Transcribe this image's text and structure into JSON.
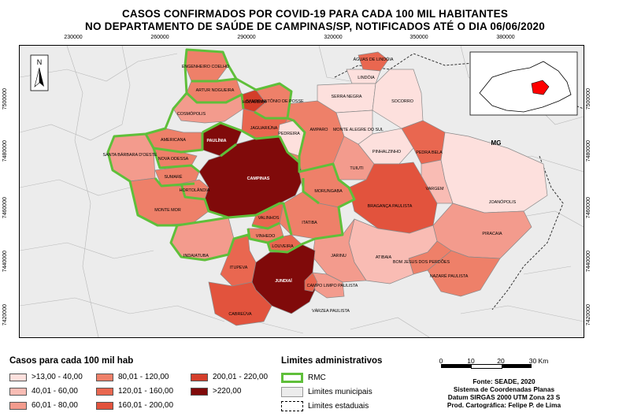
{
  "title_line1": "CASOS CONFIRMADOS POR COVID-19 PARA CADA 100 MIL HABITANTES",
  "title_line2": "NO DEPARTAMENTO DE SAÚDE DE CAMPINAS/SP, NOTIFICADOS ATÉ O DIA 06/06/2020",
  "x_ticks": [
    "230000",
    "260000",
    "290000",
    "320000",
    "350000",
    "380000"
  ],
  "y_ticks": [
    "7500000",
    "7480000",
    "7460000",
    "7440000",
    "7420000"
  ],
  "north_label": "N",
  "state_label": "MG",
  "municipalities": {
    "engenheiro_coelho": "ENGENHEIRO COELHO",
    "artur_nogueira": "ARTUR NOGUEIRA",
    "holambra": "HOLAMBRA",
    "santo_antonio_de_posse": "SANTO ANTÔNIO DE POSSE",
    "cosmopolis": "COSMÓPOLIS",
    "paulinia": "PAULÍNIA",
    "jaguariuna": "JAGUARIÚNA",
    "pedreira": "PEDREIRA",
    "americana": "AMERICANA",
    "santa_barbara": "SANTA BÁRBARA D'OESTE",
    "nova_odessa": "NOVA ODESSA",
    "sumare": "SUMARÉ",
    "hortolandia": "HORTOLÂNDIA",
    "campinas": "CAMPINAS",
    "monte_mor": "MONTE MOR",
    "indaiatuba": "INDAIATUBA",
    "valinhos": "VALINHOS",
    "vinhedo": "VINHEDO",
    "itatiba": "ITATIBA",
    "morungaba": "MORUNGABA",
    "louveira": "LOUVEIRA",
    "itupeva": "ITUPEVA",
    "jundiai": "JUNDIAÍ",
    "cabreuva": "CABREÚVA",
    "campo_limpo": "CAMPO LIMPO PAULISTA",
    "varzea_paulista": "VÁRZEA PAULISTA",
    "jarinu": "JARINU",
    "atibaia": "ATIBAIA",
    "bom_jesus": "BOM JESUS DOS PERDÕES",
    "nazare_paulista": "NAZARÉ PAULISTA",
    "piracaia": "PIRACAIA",
    "braganca_paulista": "BRAGANÇA PAULISTA",
    "vargem": "VARGEM",
    "joanopolis": "JOANÓPOLIS",
    "tuiuti": "TUIUTI",
    "pedra_bela": "PEDRA BELA",
    "pinhalzinho": "PINHALZINHO",
    "monte_alegre_do_sul": "MONTE ALEGRE DO SUL",
    "amparo": "AMPARO",
    "serra_negra": "SERRA NEGRA",
    "socorro": "SOCORRO",
    "lindoia": "LINDÓIA",
    "aguas_de_lindoia": "ÁGUAS DE LINDÓIA"
  },
  "legend": {
    "title": "Casos para cada 100 mil hab",
    "classes": [
      {
        "label": ">13,00 - 40,00",
        "color": "#fde0dd"
      },
      {
        "label": "40,01 - 60,00",
        "color": "#f9bcb4"
      },
      {
        "label": "60,01 - 80,00",
        "color": "#f39b8d"
      },
      {
        "label": "80,01 - 120,00",
        "color": "#ee8069"
      },
      {
        "label": "120,01 - 160,00",
        "color": "#e96750"
      },
      {
        "label": "160,01 - 200,00",
        "color": "#e2533d"
      },
      {
        "label": "200,01 - 220,00",
        "color": "#d43e2a"
      },
      {
        "label": ">220,00",
        "color": "#800a0a"
      }
    ]
  },
  "limits": {
    "title": "Limites administrativos",
    "rmc": "RMC",
    "municipal": "Limites municipais",
    "state": "Limites estaduais"
  },
  "scale": {
    "ticks": [
      "0",
      "10",
      "20",
      "30 Km"
    ]
  },
  "source": {
    "line1": "Fonte: SEADE, 2020",
    "line2": "Sistema de Coordenadas Planas",
    "line3": "Datum SIRGAS 2000 UTM Zona 23 S",
    "line4": "Prod. Cartográfica: Felipe P. de Lima"
  }
}
